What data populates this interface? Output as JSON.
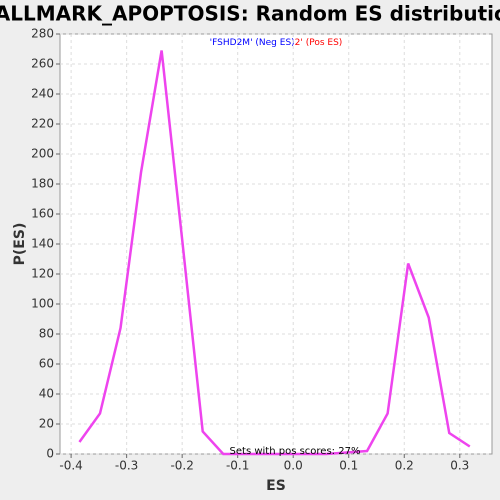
{
  "chart_data": {
    "type": "line",
    "title": "HALLMARK_APOPTOSIS: Random ES distribution",
    "xlabel": "ES",
    "ylabel": "P(ES)",
    "legend": [
      {
        "text": "'FSHD2M' (Neg ES)",
        "color": "#0000ff"
      },
      {
        "text": "2' (Pos ES)",
        "color": "#ff0000"
      }
    ],
    "annotation": "Sets with pos scores: 27%",
    "x": [
      -0.385,
      -0.348,
      -0.311,
      -0.274,
      -0.237,
      -0.2,
      -0.163,
      -0.126,
      -0.089,
      -0.052,
      -0.015,
      0.022,
      0.059,
      0.096,
      0.133,
      0.17,
      0.207,
      0.244,
      0.281,
      0.318
    ],
    "values": [
      8,
      27,
      84,
      188,
      269,
      143,
      15,
      0,
      0,
      0,
      0,
      0,
      0,
      1,
      2,
      27,
      127,
      91,
      14,
      5
    ],
    "color": "#ee44ee",
    "xlim": [
      -0.42,
      0.358
    ],
    "ylim": [
      0,
      280
    ],
    "xticks": [
      -0.4,
      -0.3,
      -0.2,
      -0.1,
      {
        "value": 0,
        "label": "0.0"
      },
      0.1,
      0.2,
      0.3
    ],
    "yticks": [
      0,
      20,
      40,
      60,
      80,
      100,
      120,
      140,
      160,
      180,
      200,
      220,
      240,
      260,
      280
    ],
    "grid": true
  }
}
